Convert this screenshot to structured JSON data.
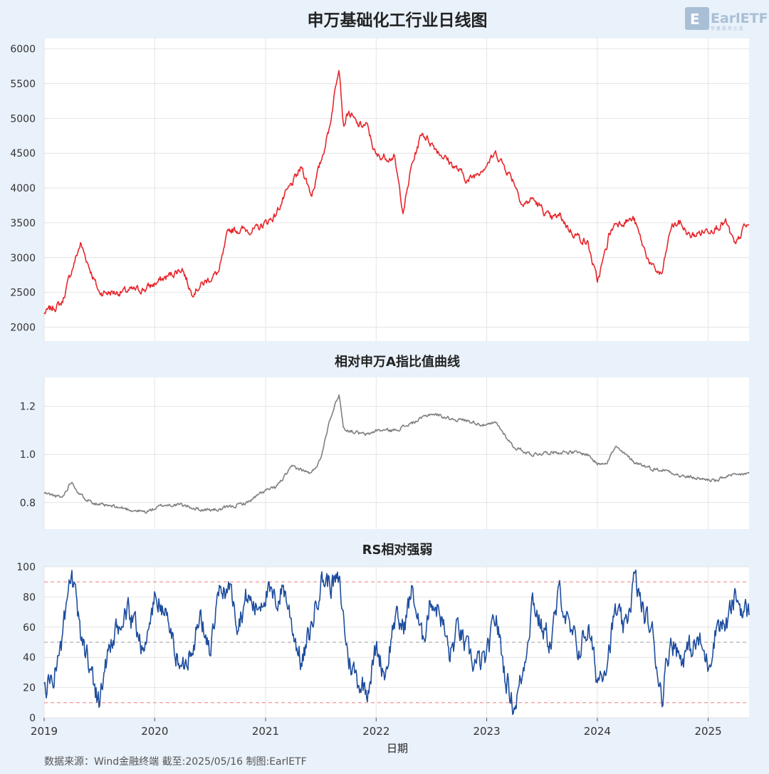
{
  "title": "申万基础化工行业日线图",
  "logo": {
    "text": "EarlETF",
    "sub": "宇 量 投 资 之 道"
  },
  "source_text": "数据来源：Wind金融终端 截至:2025/05/16 制图:EarlETF",
  "x_axis": {
    "label": "日期",
    "ticks": [
      "2019",
      "2020",
      "2021",
      "2022",
      "2023",
      "2024",
      "2025"
    ]
  },
  "colors": {
    "price": "#e8262b",
    "ratio": "#808080",
    "rs": "#1f4e9e",
    "ref_red": "#f08a8a",
    "ref_gray": "#b0b0b0",
    "panel_bg": "#ffffff",
    "page_bg": "#e9f1fa"
  },
  "chart_data": [
    {
      "type": "line",
      "title": "",
      "x": [
        "2019-01",
        "2019-03",
        "2019-04",
        "2019-05",
        "2019-07",
        "2019-09",
        "2019-12",
        "2020-02",
        "2020-04",
        "2020-05",
        "2020-08",
        "2020-09",
        "2020-12",
        "2021-02",
        "2021-03",
        "2021-05",
        "2021-06",
        "2021-07",
        "2021-08",
        "2021-09",
        "2021-09-15",
        "2021-10",
        "2021-11",
        "2021-12",
        "2022-01",
        "2022-03",
        "2022-04",
        "2022-04-27",
        "2022-06",
        "2022-08",
        "2022-10",
        "2022-11",
        "2023-01",
        "2023-02",
        "2023-04",
        "2023-05",
        "2023-06",
        "2023-08",
        "2023-09",
        "2023-10",
        "2023-12",
        "2024-01",
        "2024-02",
        "2024-02-06",
        "2024-03",
        "2024-05",
        "2024-06",
        "2024-07",
        "2024-08",
        "2024-09",
        "2024-10",
        "2024-11",
        "2025-01",
        "2025-03",
        "2025-04",
        "2025-05"
      ],
      "series": [
        {
          "name": "",
          "values": [
            2200,
            2350,
            2800,
            3200,
            2500,
            2500,
            2550,
            2700,
            2850,
            2500,
            2800,
            3400,
            3400,
            3600,
            3850,
            4300,
            3900,
            4350,
            4900,
            5800,
            4900,
            5100,
            4900,
            4900,
            4450,
            4450,
            3650,
            4300,
            4800,
            4500,
            4250,
            4100,
            4350,
            4500,
            4100,
            3750,
            3850,
            3550,
            3600,
            3400,
            3200,
            2650,
            3150,
            3300,
            3500,
            3550,
            3150,
            2850,
            2750,
            3450,
            3500,
            3300,
            3400,
            3500,
            3150,
            3450
          ]
        }
      ],
      "ylim": [
        1800,
        6150
      ],
      "yticks": [
        2000,
        2500,
        3000,
        3500,
        4000,
        4500,
        5000,
        5500,
        6000
      ],
      "grid": true
    },
    {
      "type": "line",
      "title": "相对申万A指比值曲线",
      "x": [
        "2019-01",
        "2019-03",
        "2019-04",
        "2019-05",
        "2019-07",
        "2019-09",
        "2019-12",
        "2020-02",
        "2020-04",
        "2020-06",
        "2020-08",
        "2020-11",
        "2021-01",
        "2021-02",
        "2021-04",
        "2021-06",
        "2021-07",
        "2021-08",
        "2021-09",
        "2021-09-15",
        "2021-10",
        "2021-11",
        "2021-12",
        "2022-01",
        "2022-03",
        "2022-05",
        "2022-07",
        "2022-09",
        "2022-11",
        "2023-01",
        "2023-02",
        "2023-04",
        "2023-06",
        "2023-08",
        "2023-10",
        "2023-12",
        "2024-01",
        "2024-02",
        "2024-03",
        "2024-04",
        "2024-05",
        "2024-07",
        "2024-09",
        "2024-10",
        "2024-12",
        "2025-02",
        "2025-03",
        "2025-04",
        "2025-05"
      ],
      "series": [
        {
          "name": "",
          "values": [
            0.84,
            0.82,
            0.89,
            0.83,
            0.79,
            0.78,
            0.76,
            0.79,
            0.79,
            0.77,
            0.77,
            0.8,
            0.85,
            0.86,
            0.95,
            0.92,
            0.98,
            1.15,
            1.25,
            1.11,
            1.1,
            1.09,
            1.08,
            1.1,
            1.1,
            1.13,
            1.17,
            1.15,
            1.14,
            1.12,
            1.13,
            1.03,
            1.0,
            1.01,
            1.01,
            1.0,
            0.96,
            0.97,
            1.03,
            1.0,
            0.97,
            0.94,
            0.93,
            0.91,
            0.9,
            0.89,
            0.91,
            0.91,
            0.92
          ]
        }
      ],
      "ylim": [
        0.69,
        1.32
      ],
      "yticks": [
        0.8,
        1.0,
        1.2
      ],
      "grid": true
    },
    {
      "type": "line",
      "title": "RS相对强弱",
      "x": [
        "2019-01",
        "2019-02",
        "2019-03",
        "2019-04",
        "2019-05",
        "2019-06",
        "2019-07",
        "2019-08",
        "2019-09",
        "2019-10",
        "2019-11",
        "2019-12",
        "2020-01",
        "2020-02",
        "2020-03",
        "2020-04",
        "2020-05",
        "2020-06",
        "2020-07",
        "2020-08",
        "2020-09",
        "2020-10",
        "2020-11",
        "2020-12",
        "2021-01",
        "2021-02",
        "2021-03",
        "2021-04",
        "2021-05",
        "2021-06",
        "2021-07",
        "2021-08",
        "2021-09",
        "2021-10",
        "2021-11",
        "2021-12",
        "2022-01",
        "2022-02",
        "2022-03",
        "2022-04",
        "2022-05",
        "2022-06",
        "2022-07",
        "2022-08",
        "2022-09",
        "2022-10",
        "2022-11",
        "2022-12",
        "2023-01",
        "2023-02",
        "2023-03",
        "2023-04",
        "2023-05",
        "2023-06",
        "2023-07",
        "2023-08",
        "2023-09",
        "2023-10",
        "2023-11",
        "2023-12",
        "2024-01",
        "2024-02",
        "2024-03",
        "2024-04",
        "2024-05",
        "2024-06",
        "2024-07",
        "2024-08",
        "2024-09",
        "2024-10",
        "2024-11",
        "2024-12",
        "2025-01",
        "2025-02",
        "2025-03",
        "2025-04",
        "2025-05"
      ],
      "series": [
        {
          "name": "",
          "values": [
            18,
            30,
            50,
            93,
            55,
            35,
            10,
            45,
            55,
            70,
            60,
            45,
            80,
            72,
            50,
            30,
            50,
            65,
            45,
            80,
            88,
            65,
            80,
            72,
            85,
            75,
            88,
            60,
            35,
            60,
            92,
            90,
            88,
            40,
            25,
            20,
            45,
            30,
            65,
            60,
            85,
            50,
            80,
            70,
            40,
            60,
            40,
            35,
            38,
            68,
            30,
            8,
            30,
            80,
            60,
            50,
            85,
            55,
            45,
            60,
            25,
            40,
            70,
            55,
            92,
            70,
            55,
            15,
            55,
            40,
            45,
            50,
            35,
            65,
            60,
            80,
            70
          ]
        }
      ],
      "ylim": [
        0,
        100
      ],
      "yticks": [
        0,
        20,
        40,
        60,
        80,
        100
      ],
      "ref_lines": [
        10,
        50,
        90
      ],
      "grid": true
    }
  ]
}
